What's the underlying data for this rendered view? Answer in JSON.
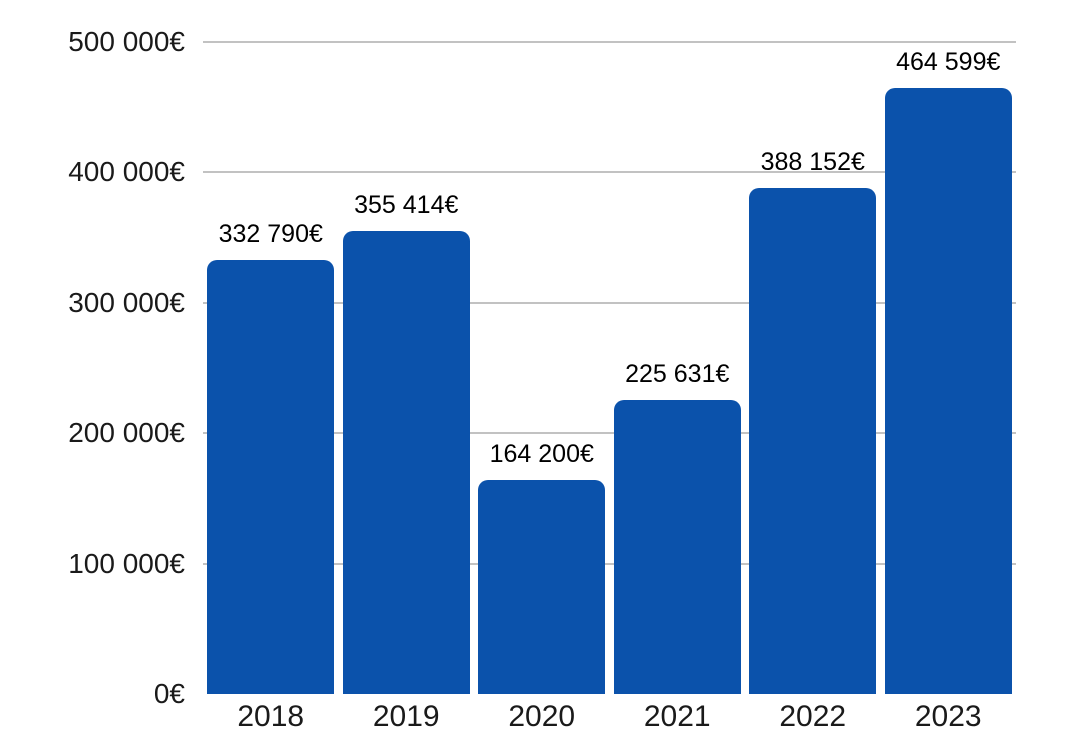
{
  "chart": {
    "background_color": "#ffffff",
    "bar_color": "#0b52ab",
    "gridline_color": "#c2c2c2",
    "axis_text_color": "#1a1a1a",
    "value_label_color": "#000000"
  },
  "chart_data": {
    "type": "bar",
    "title": "",
    "xlabel": "",
    "ylabel": "",
    "categories": [
      "2018",
      "2019",
      "2020",
      "2021",
      "2022",
      "2023"
    ],
    "values": [
      332790,
      355414,
      164200,
      225631,
      388152,
      464599
    ],
    "data_labels": [
      "332 790€",
      "355 414€",
      "164 200€",
      "225 631€",
      "388 152€",
      "464 599€"
    ],
    "ylim": [
      0,
      500000
    ],
    "ytick_interval": 100000,
    "yticks": [
      {
        "value": 500000,
        "label": "500 000€"
      },
      {
        "value": 400000,
        "label": "400 000€"
      },
      {
        "value": 300000,
        "label": "300 000€"
      },
      {
        "value": 200000,
        "label": "200 000€"
      },
      {
        "value": 100000,
        "label": "100 000€"
      },
      {
        "value": 0,
        "label": "0€"
      }
    ],
    "legend": "none",
    "grid": "horizontal"
  }
}
